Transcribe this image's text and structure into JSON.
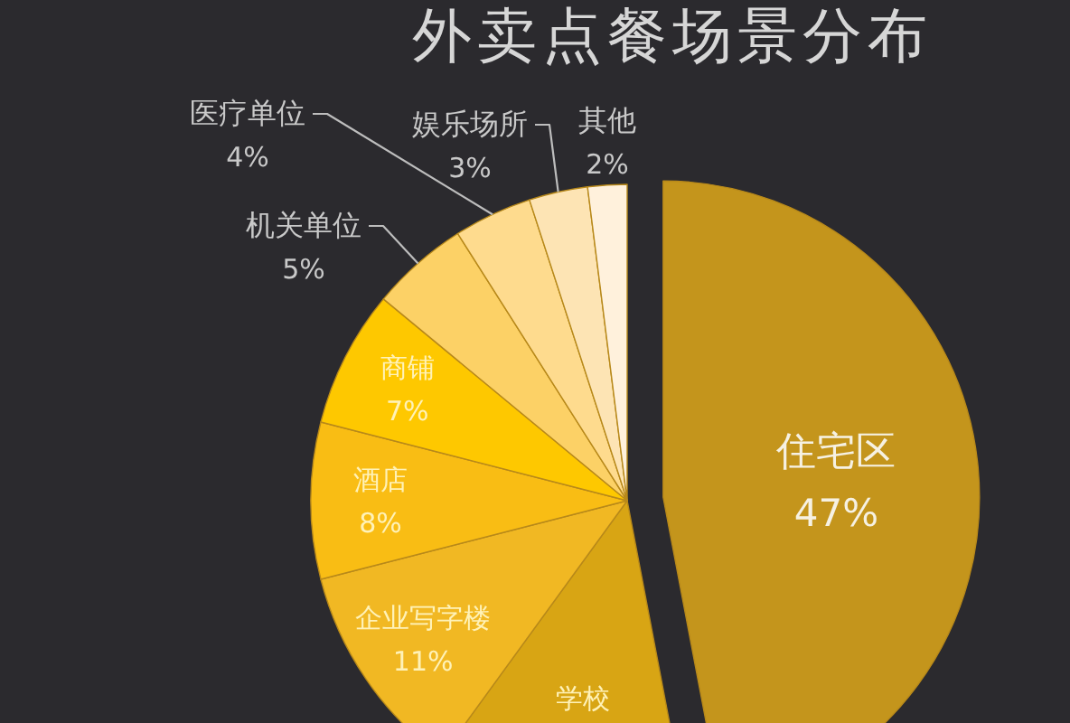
{
  "chart_data": {
    "type": "pie",
    "title": "外卖点餐场景分布",
    "categories": [
      "住宅区",
      "学校",
      "企业写字楼",
      "酒店",
      "商铺",
      "机关单位",
      "医疗单位",
      "娱乐场所",
      "其他"
    ],
    "values": [
      47,
      13,
      11,
      8,
      7,
      5,
      4,
      3,
      2
    ],
    "colors": [
      "#c4951c",
      "#d8a514",
      "#f1b823",
      "#f9bd14",
      "#fec800",
      "#fcd166",
      "#fedb8e",
      "#fde4b4",
      "#fff1dc"
    ],
    "value_labels": [
      "47%",
      null,
      "11%",
      "8%",
      "7%",
      "5%",
      "4%",
      "3%",
      "2%"
    ]
  }
}
